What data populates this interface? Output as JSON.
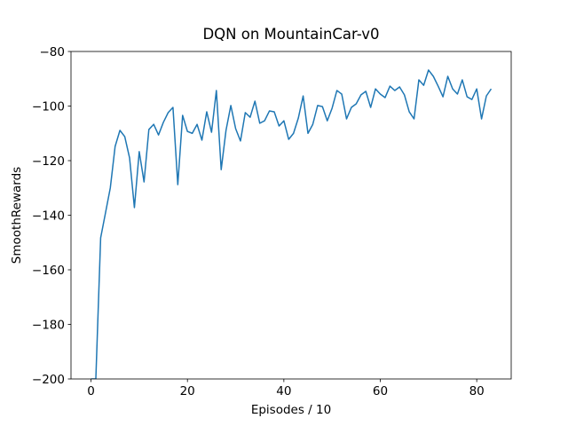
{
  "chart_data": {
    "type": "line",
    "title": "DQN on MountainCar-v0",
    "x_label": "Episodes / 10",
    "y_label": "SmoothRewards",
    "x": [
      0,
      1,
      2,
      3,
      4,
      5,
      6,
      7,
      8,
      9,
      10,
      11,
      12,
      13,
      14,
      15,
      16,
      17,
      18,
      19,
      20,
      21,
      22,
      23,
      24,
      25,
      26,
      27,
      28,
      29,
      30,
      31,
      32,
      33,
      34,
      35,
      36,
      37,
      38,
      39,
      40,
      41,
      42,
      43,
      44,
      45,
      46,
      47,
      48,
      49,
      50,
      51,
      52,
      53,
      54,
      55,
      56,
      57,
      58,
      59,
      60,
      61,
      62,
      63,
      64,
      65,
      66,
      67,
      68,
      69,
      70,
      71,
      72,
      73,
      74,
      75,
      76,
      77,
      78,
      79,
      80,
      81,
      82,
      83
    ],
    "series": [
      {
        "color": "#1f77b4",
        "values": [
          -200,
          -200,
          -148.3,
          -139.2,
          -130,
          -114.8,
          -108.9,
          -111.2,
          -119,
          -137.2,
          -116.7,
          -127.8,
          -108.6,
          -106.7,
          -110.6,
          -106,
          -102.4,
          -100.5,
          -128.8,
          -103.4,
          -109.3,
          -110,
          -106.7,
          -112.5,
          -102.1,
          -109.6,
          -94.3,
          -123.3,
          -108.9,
          -99.8,
          -108.3,
          -112.8,
          -102.4,
          -104.1,
          -98.2,
          -106.3,
          -105.4,
          -101.8,
          -102.1,
          -107.3,
          -105.4,
          -112.2,
          -110,
          -104.4,
          -96.3,
          -110,
          -106.7,
          -99.8,
          -100.2,
          -105.4,
          -100.8,
          -94.3,
          -95.6,
          -104.7,
          -100.5,
          -99.2,
          -95.9,
          -94.6,
          -100.5,
          -93.7,
          -95.6,
          -96.9,
          -92.7,
          -94.3,
          -93,
          -95.9,
          -102.1,
          -104.7,
          -90.4,
          -92.4,
          -86.8,
          -89.1,
          -92.7,
          -96.6,
          -89.1,
          -93.7,
          -95.6,
          -90.4,
          -96.6,
          -97.6,
          -93.7,
          -104.7,
          -96.3,
          -93.7
        ]
      }
    ],
    "xlim": [
      -4.15,
      87.15
    ],
    "ylim": [
      -200,
      -80
    ],
    "xticks": [
      0,
      20,
      40,
      60,
      80
    ],
    "yticks": [
      {
        "value": -200,
        "label": "−200"
      },
      {
        "value": -180,
        "label": "−180"
      },
      {
        "value": -160,
        "label": "−160"
      },
      {
        "value": -140,
        "label": "−140"
      },
      {
        "value": -120,
        "label": "−120"
      },
      {
        "value": -100,
        "label": "−100"
      },
      {
        "value": -80,
        "label": "−80"
      }
    ]
  }
}
